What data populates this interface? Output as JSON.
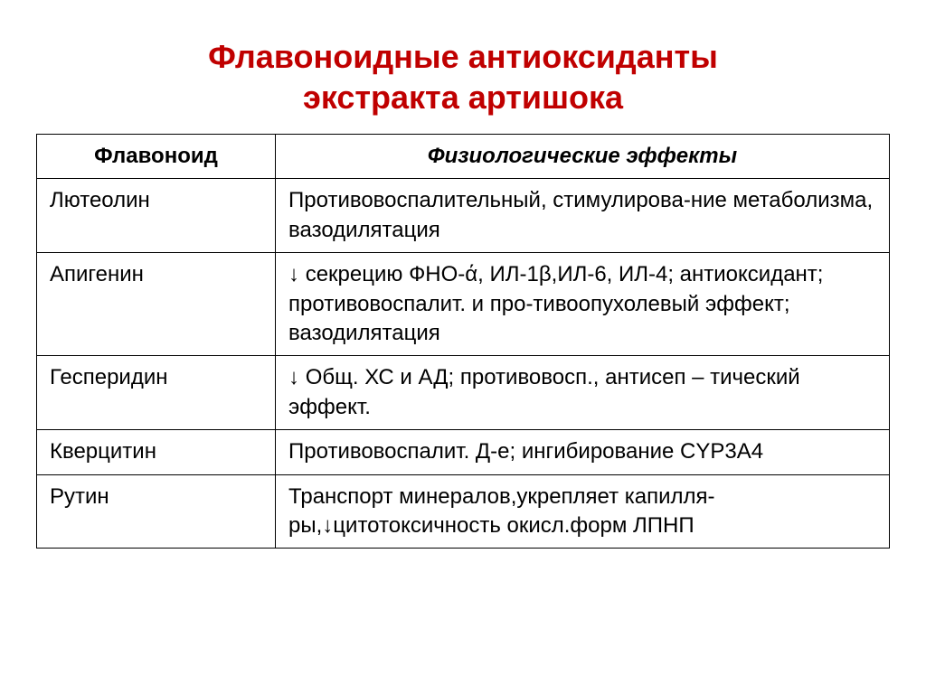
{
  "title_line1": "Флавоноидные антиоксиданты",
  "title_line2": "экстракта артишока",
  "columns": {
    "flavonoid": "Флавоноид",
    "effects": "Физиологические эффекты"
  },
  "rows": [
    {
      "flavonoid": "Лютеолин",
      "effects": "Противовоспалительный, стимулирова-ние метаболизма, вазодилятация"
    },
    {
      "flavonoid": "Апигенин",
      "effects": " ↓ секрецию ФНО-ά, ИЛ-1β,ИЛ-6, ИЛ-4; антиоксидант; противовоспалит. и про-тивоопухолевый эффект; вазодилятация"
    },
    {
      "flavonoid": "Гесперидин",
      "effects": "↓ Общ. ХС и АД; противовосп., антисеп – тический эффект."
    },
    {
      "flavonoid": "Кверцитин",
      "effects": "Противовоспалит. Д-е; ингибирование CYP3A4"
    },
    {
      "flavonoid": "Рутин",
      "effects": "Транспорт минералов,укрепляет капилля-ры,↓цитотоксичность окисл.форм ЛПНП"
    }
  ],
  "style": {
    "title_color": "#c00000",
    "title_fontsize_pt": 27,
    "cell_fontsize_pt": 18,
    "border_color": "#000000",
    "background_color": "#ffffff",
    "col_widths_pct": [
      28,
      72
    ],
    "header_effects_italic": true
  }
}
